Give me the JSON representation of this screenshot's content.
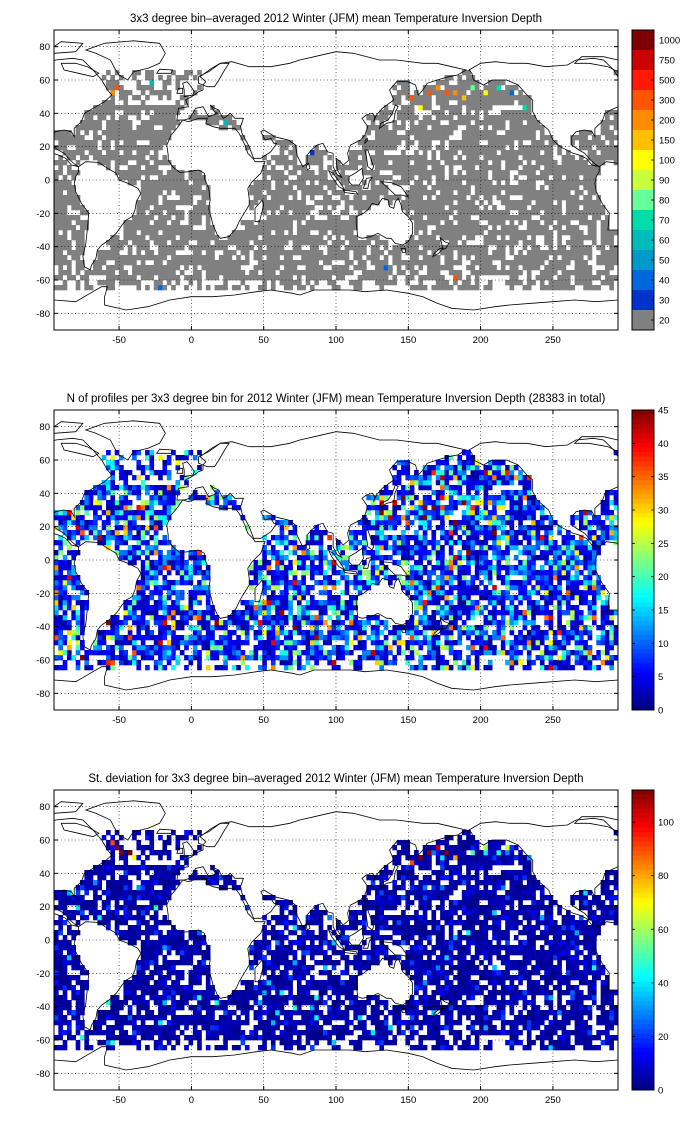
{
  "chart_data": [
    {
      "type": "heatmap",
      "title": "3x3 degree bin–averaged 2012 Winter (JFM) mean Temperature Inversion Depth",
      "xlim": [
        -95,
        295
      ],
      "ylim": [
        -90,
        90
      ],
      "xticks": [
        "-50",
        "0",
        "50",
        "100",
        "150",
        "200",
        "250"
      ],
      "xtick_values": [
        -50,
        0,
        50,
        100,
        150,
        200,
        250
      ],
      "yticks": [
        "80",
        "60",
        "40",
        "20",
        "0",
        "-20",
        "-40",
        "-60",
        "-80"
      ],
      "ytick_values": [
        80,
        60,
        40,
        20,
        0,
        -20,
        -40,
        -60,
        -80
      ],
      "grid": true,
      "colorbar": {
        "labels": [
          "1000",
          "750",
          "500",
          "300",
          "200",
          "150",
          "100",
          "90",
          "80",
          "70",
          "60",
          "50",
          "40",
          "30",
          "20"
        ],
        "colors": [
          "#7f0000",
          "#cc0000",
          "#ff1a00",
          "#ff5500",
          "#ff8c00",
          "#ffc000",
          "#ffff00",
          "#c8ff3c",
          "#66ff99",
          "#00ddaa",
          "#00bbbb",
          "#0099cc",
          "#0066dd",
          "#0033cc",
          "#808080"
        ]
      },
      "hot_bins": [
        {
          "lon": -50,
          "lat": 58,
          "value": 300
        },
        {
          "lon": -47,
          "lat": 61,
          "value": 500
        },
        {
          "lon": -53,
          "lat": 55,
          "value": 200
        },
        {
          "lon": -44,
          "lat": 64,
          "value": 750
        },
        {
          "lon": -41,
          "lat": 58,
          "value": 150
        },
        {
          "lon": -38,
          "lat": 55,
          "value": 40
        },
        {
          "lon": -32,
          "lat": 52,
          "value": 50
        },
        {
          "lon": -26,
          "lat": 61,
          "value": 60
        },
        {
          "lon": 25,
          "lat": 37,
          "value": 60
        },
        {
          "lon": 13,
          "lat": 43,
          "value": 40
        },
        {
          "lon": 85,
          "lat": 19,
          "value": 30
        },
        {
          "lon": 160,
          "lat": 58,
          "value": 200
        },
        {
          "lon": 166,
          "lat": 55,
          "value": 300
        },
        {
          "lon": 172,
          "lat": 58,
          "value": 200
        },
        {
          "lon": 178,
          "lat": 55,
          "value": 300
        },
        {
          "lon": 184,
          "lat": 55,
          "value": 200
        },
        {
          "lon": 190,
          "lat": 52,
          "value": 150
        },
        {
          "lon": 154,
          "lat": 52,
          "value": 300
        },
        {
          "lon": 148,
          "lat": 49,
          "value": 100
        },
        {
          "lon": 196,
          "lat": 58,
          "value": 80
        },
        {
          "lon": 205,
          "lat": 55,
          "value": 100
        },
        {
          "lon": 214,
          "lat": 58,
          "value": 70
        },
        {
          "lon": 223,
          "lat": 55,
          "value": 40
        },
        {
          "lon": 160,
          "lat": 46,
          "value": 100
        },
        {
          "lon": 172,
          "lat": 46,
          "value": 150
        },
        {
          "lon": 220,
          "lat": 37,
          "value": 40
        },
        {
          "lon": 232,
          "lat": 46,
          "value": 70
        },
        {
          "lon": 292,
          "lat": 46,
          "value": 200
        },
        {
          "lon": -50,
          "lat": -63,
          "value": 300
        },
        {
          "lon": -47,
          "lat": -66,
          "value": 200
        },
        {
          "lon": -35,
          "lat": -69,
          "value": 100
        },
        {
          "lon": 43,
          "lat": -66,
          "value": 70
        },
        {
          "lon": 67,
          "lat": -69,
          "value": 40
        },
        {
          "lon": 166,
          "lat": -69,
          "value": 200
        },
        {
          "lon": 184,
          "lat": -57,
          "value": 300
        },
        {
          "lon": 232,
          "lat": -66,
          "value": 100
        },
        {
          "lon": 235,
          "lat": -69,
          "value": 150
        },
        {
          "lon": -20,
          "lat": -63,
          "value": 40
        },
        {
          "lon": 100,
          "lat": -57,
          "value": 30
        },
        {
          "lon": 136,
          "lat": -51,
          "value": 40
        }
      ]
    },
    {
      "type": "heatmap",
      "title": "N of profiles per 3x3 degree bin for 2012 Winter (JFM) mean Temperature Inversion Depth  (28383 in total)",
      "xlim": [
        -95,
        295
      ],
      "ylim": [
        -90,
        90
      ],
      "xticks": [
        "-50",
        "0",
        "50",
        "100",
        "150",
        "200",
        "250"
      ],
      "xtick_values": [
        -50,
        0,
        50,
        100,
        150,
        200,
        250
      ],
      "yticks": [
        "80",
        "60",
        "40",
        "20",
        "0",
        "-20",
        "-40",
        "-60",
        "-80"
      ],
      "ytick_values": [
        80,
        60,
        40,
        20,
        0,
        -20,
        -40,
        -60,
        -80
      ],
      "grid": true,
      "total_profiles": 28383,
      "colorbar": {
        "min": 0,
        "max": 45,
        "labels": [
          "45",
          "40",
          "35",
          "30",
          "25",
          "20",
          "15",
          "10",
          "5",
          "0"
        ],
        "label_values": [
          45,
          40,
          35,
          30,
          25,
          20,
          15,
          10,
          5,
          0
        ],
        "colormap": "jet"
      }
    },
    {
      "type": "heatmap",
      "title": "St. deviation for 3x3 degree bin–averaged 2012 Winter (JFM) mean Temperature Inversion Depth",
      "xlim": [
        -95,
        295
      ],
      "ylim": [
        -90,
        90
      ],
      "xticks": [
        "-50",
        "0",
        "50",
        "100",
        "150",
        "200",
        "250"
      ],
      "xtick_values": [
        -50,
        0,
        50,
        100,
        150,
        200,
        250
      ],
      "yticks": [
        "80",
        "60",
        "40",
        "20",
        "0",
        "-20",
        "-40",
        "-60",
        "-80"
      ],
      "ytick_values": [
        80,
        60,
        40,
        20,
        0,
        -20,
        -40,
        -60,
        -80
      ],
      "grid": true,
      "colorbar": {
        "min": 0,
        "max": 112,
        "labels": [
          "100",
          "80",
          "60",
          "40",
          "20",
          "0"
        ],
        "label_values": [
          100,
          80,
          60,
          40,
          20,
          0
        ],
        "colormap": "jet"
      },
      "hot_bins": [
        {
          "lon": -50,
          "lat": 58,
          "value": 112
        },
        {
          "lon": -47,
          "lat": 55,
          "value": 112
        },
        {
          "lon": -44,
          "lat": 61,
          "value": 100
        },
        {
          "lon": -41,
          "lat": 55,
          "value": 112
        },
        {
          "lon": -53,
          "lat": 61,
          "value": 90
        },
        {
          "lon": -38,
          "lat": 52,
          "value": 70
        },
        {
          "lon": -30,
          "lat": 55,
          "value": 40
        },
        {
          "lon": 160,
          "lat": 52,
          "value": 112
        },
        {
          "lon": 166,
          "lat": 55,
          "value": 112
        },
        {
          "lon": 172,
          "lat": 58,
          "value": 105
        },
        {
          "lon": 178,
          "lat": 55,
          "value": 112
        },
        {
          "lon": 154,
          "lat": 49,
          "value": 90
        },
        {
          "lon": 184,
          "lat": 52,
          "value": 80
        },
        {
          "lon": 196,
          "lat": 55,
          "value": 50
        },
        {
          "lon": 205,
          "lat": 58,
          "value": 60
        },
        {
          "lon": 214,
          "lat": 55,
          "value": 45
        },
        {
          "lon": 220,
          "lat": 58,
          "value": 65
        },
        {
          "lon": -50,
          "lat": -63,
          "value": 112
        },
        {
          "lon": 232,
          "lat": -66,
          "value": 40
        },
        {
          "lon": 292,
          "lat": 46,
          "value": 50
        }
      ]
    }
  ]
}
